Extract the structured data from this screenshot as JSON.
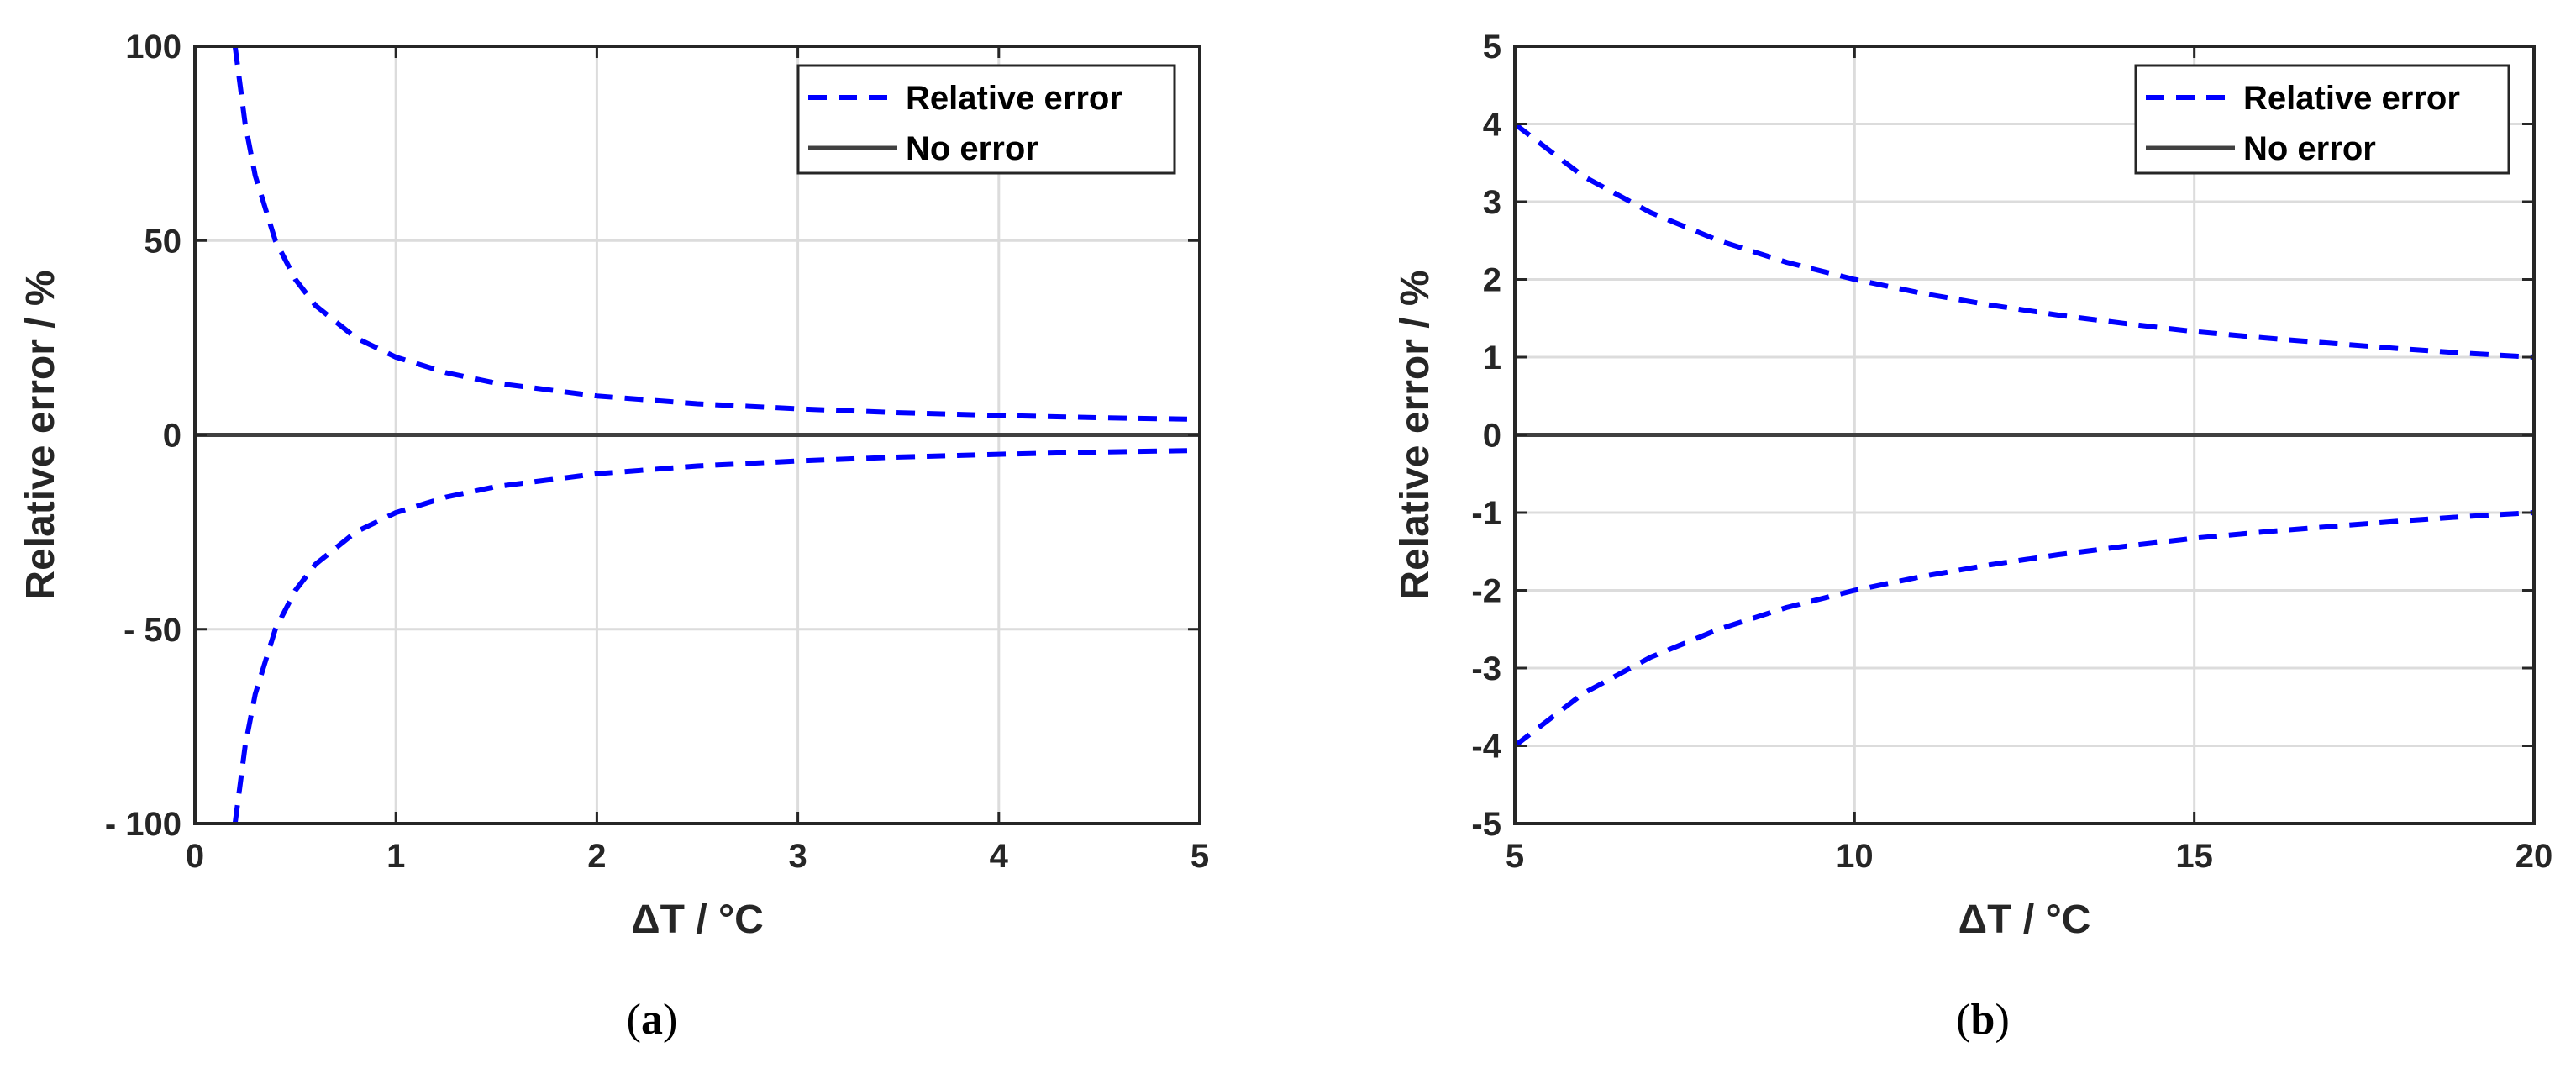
{
  "chart_data": [
    {
      "type": "line",
      "panel_label": "a",
      "xlabel": "ΔT / °C",
      "ylabel": "Relative error / %",
      "xlim": [
        0,
        5
      ],
      "ylim": [
        -100,
        100
      ],
      "xticks": [
        0,
        1,
        2,
        3,
        4,
        5
      ],
      "xtick_labels": [
        "0",
        "1",
        "2",
        "3",
        "4",
        "5"
      ],
      "yticks": [
        -100,
        -50,
        0,
        50,
        100
      ],
      "ytick_labels": [
        "- 100",
        "- 50",
        "0",
        "50",
        "100"
      ],
      "grid": true,
      "legend_position": "top-right",
      "series": [
        {
          "name": "Relative error",
          "style": "dashed",
          "color": "#0000ff",
          "x": [
            0.2,
            0.25,
            0.3,
            0.4,
            0.5,
            0.6,
            0.8,
            1.0,
            1.25,
            1.5,
            2.0,
            2.5,
            3.0,
            3.5,
            4.0,
            4.5,
            5.0
          ],
          "y": [
            100,
            80,
            66.7,
            50,
            40,
            33.3,
            25,
            20,
            16,
            13.3,
            10,
            8,
            6.7,
            5.7,
            5,
            4.4,
            4
          ]
        },
        {
          "name": "",
          "style": "dashed",
          "color": "#0000ff",
          "x": [
            0.2,
            0.25,
            0.3,
            0.4,
            0.5,
            0.6,
            0.8,
            1.0,
            1.25,
            1.5,
            2.0,
            2.5,
            3.0,
            3.5,
            4.0,
            4.5,
            5.0
          ],
          "y": [
            -100,
            -80,
            -66.7,
            -50,
            -40,
            -33.3,
            -25,
            -20,
            -16,
            -13.3,
            -10,
            -8,
            -6.7,
            -5.7,
            -5,
            -4.4,
            -4
          ]
        },
        {
          "name": "No error",
          "style": "solid",
          "color": "#404040",
          "x": [
            0,
            5
          ],
          "y": [
            0,
            0
          ]
        }
      ]
    },
    {
      "type": "line",
      "panel_label": "b",
      "xlabel": "ΔT / °C",
      "ylabel": "Relative error / %",
      "xlim": [
        5,
        20
      ],
      "ylim": [
        -5,
        5
      ],
      "xticks": [
        5,
        10,
        15,
        20
      ],
      "xtick_labels": [
        "5",
        "10",
        "15",
        "20"
      ],
      "yticks": [
        -5,
        -4,
        -3,
        -2,
        -1,
        0,
        1,
        2,
        3,
        4,
        5
      ],
      "ytick_labels": [
        "-5",
        "-4",
        "-3",
        "-2",
        "-1",
        "0",
        "1",
        "2",
        "3",
        "4",
        "5"
      ],
      "grid": true,
      "legend_position": "top-right",
      "series": [
        {
          "name": "Relative error",
          "style": "dashed",
          "color": "#0000ff",
          "x": [
            5,
            6,
            7,
            8,
            9,
            10,
            11,
            12,
            13,
            14,
            15,
            16,
            17,
            18,
            19,
            20
          ],
          "y": [
            4,
            3.33,
            2.86,
            2.5,
            2.22,
            2,
            1.82,
            1.67,
            1.54,
            1.43,
            1.33,
            1.25,
            1.18,
            1.11,
            1.05,
            1
          ]
        },
        {
          "name": "",
          "style": "dashed",
          "color": "#0000ff",
          "x": [
            5,
            6,
            7,
            8,
            9,
            10,
            11,
            12,
            13,
            14,
            15,
            16,
            17,
            18,
            19,
            20
          ],
          "y": [
            -4,
            -3.33,
            -2.86,
            -2.5,
            -2.22,
            -2,
            -1.82,
            -1.67,
            -1.54,
            -1.43,
            -1.33,
            -1.25,
            -1.18,
            -1.11,
            -1.05,
            -1
          ]
        },
        {
          "name": "No error",
          "style": "solid",
          "color": "#404040",
          "x": [
            5,
            20
          ],
          "y": [
            0,
            0
          ]
        }
      ]
    }
  ]
}
